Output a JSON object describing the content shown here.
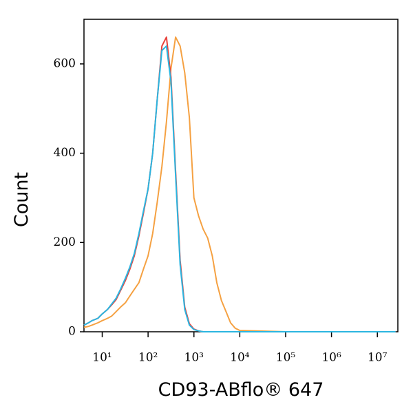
{
  "chart_data": {
    "type": "line",
    "x_label": "CD93-ABflo® 647",
    "y_label": "Count",
    "x": [
      4,
      5,
      6,
      8,
      10,
      13,
      16,
      20,
      25,
      32,
      40,
      50,
      63,
      79,
      100,
      126,
      158,
      200,
      251,
      316,
      398,
      501,
      631,
      794,
      1000,
      1259,
      1585,
      1995,
      2512,
      3162,
      3981,
      5012,
      6310,
      7943,
      10000,
      100000,
      1000000,
      10000000,
      25000000
    ],
    "series": [
      {
        "color": "#f5a142",
        "values": [
          10,
          12,
          15,
          20,
          25,
          30,
          35,
          45,
          55,
          65,
          80,
          95,
          110,
          140,
          170,
          220,
          290,
          370,
          470,
          590,
          660,
          640,
          580,
          480,
          300,
          260,
          230,
          210,
          170,
          110,
          70,
          45,
          20,
          8,
          3,
          0,
          0,
          0,
          0
        ]
      },
      {
        "color": "#e8423c",
        "values": [
          15,
          20,
          25,
          30,
          40,
          50,
          60,
          72,
          92,
          115,
          140,
          170,
          215,
          265,
          320,
          400,
          520,
          640,
          660,
          570,
          360,
          160,
          55,
          18,
          6,
          2,
          0,
          0,
          0,
          0,
          0,
          0,
          0,
          0,
          0,
          0,
          0,
          0,
          0
        ]
      },
      {
        "color": "#2bb5e0",
        "values": [
          15,
          20,
          25,
          30,
          40,
          50,
          62,
          75,
          95,
          120,
          145,
          175,
          220,
          270,
          320,
          400,
          520,
          630,
          640,
          560,
          350,
          150,
          50,
          15,
          5,
          2,
          0,
          0,
          0,
          0,
          0,
          0,
          0,
          0,
          0,
          0,
          0,
          0,
          0
        ]
      }
    ],
    "xscale": "log",
    "xlim": [
      4,
      28000000
    ],
    "xticks": [
      {
        "value": 10,
        "label": "10¹"
      },
      {
        "value": 100,
        "label": "10²"
      },
      {
        "value": 1000,
        "label": "10³"
      },
      {
        "value": 10000,
        "label": "10⁴"
      },
      {
        "value": 100000,
        "label": "10⁵"
      },
      {
        "value": 1000000,
        "label": "10⁶"
      },
      {
        "value": 10000000,
        "label": "10⁷"
      }
    ],
    "ylim": [
      0,
      700
    ],
    "yticks": [
      0,
      200,
      400,
      600
    ]
  }
}
